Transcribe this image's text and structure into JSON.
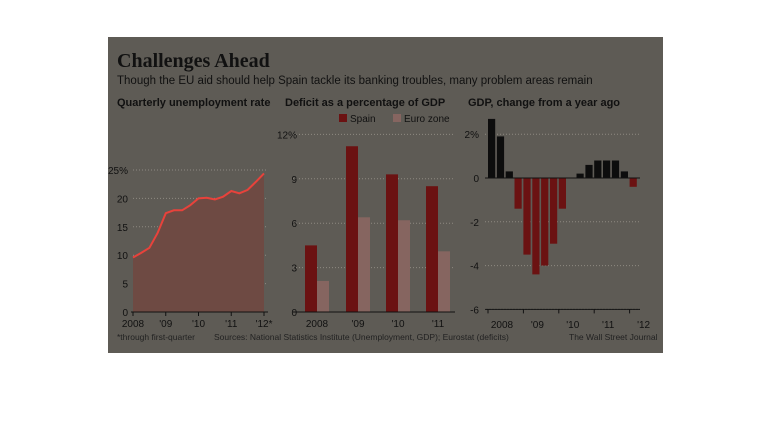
{
  "header": {
    "title": "Challenges Ahead",
    "subtitle": "Though the EU aid should help Spain tackle its banking troubles, many problem areas remain"
  },
  "footer": {
    "note": "*through first-quarter",
    "sources": "Sources: National Statistics Institute (Unemployment, GDP); Eurostat (deficits)",
    "credit": "The Wall Street Journal"
  },
  "colors": {
    "panel": "#5e5b55",
    "unemployment_line": "#e8423b",
    "unemployment_fill": "#6e4a43",
    "spain": "#6b1212",
    "euro_zone": "#866560",
    "gdp_positive": "#0d0d0d",
    "gdp_negative": "#6b1212",
    "gridline": "#8e8a82"
  },
  "chart_data": [
    {
      "type": "area",
      "title": "Quarterly unemployment rate",
      "x": [
        "2008 Q1",
        "2008 Q2",
        "2008 Q3",
        "2008 Q4",
        "2009 Q1",
        "2009 Q2",
        "2009 Q3",
        "2009 Q4",
        "2010 Q1",
        "2010 Q2",
        "2010 Q3",
        "2010 Q4",
        "2011 Q1",
        "2011 Q2",
        "2011 Q3",
        "2011 Q4",
        "2012 Q1"
      ],
      "values": [
        9.6,
        10.4,
        11.3,
        13.9,
        17.4,
        17.9,
        17.9,
        18.8,
        20.0,
        20.1,
        19.8,
        20.3,
        21.3,
        20.9,
        21.5,
        22.9,
        24.4
      ],
      "xtick_labels": [
        "2008",
        "'09",
        "'10",
        "'11",
        "'12*"
      ],
      "ytick_labels": [
        "0",
        "5",
        "10",
        "15",
        "20",
        "25%"
      ],
      "ylim": [
        0,
        25
      ]
    },
    {
      "type": "bar",
      "title": "Deficit as a percentage of GDP",
      "categories": [
        "2008",
        "'09",
        "'10",
        "'11"
      ],
      "series": [
        {
          "name": "Spain",
          "values": [
            4.5,
            11.2,
            9.3,
            8.5
          ]
        },
        {
          "name": "Euro zone",
          "values": [
            2.1,
            6.4,
            6.2,
            4.1
          ]
        }
      ],
      "ytick_labels": [
        "0",
        "3",
        "6",
        "9",
        "12%"
      ],
      "ylim": [
        0,
        12
      ]
    },
    {
      "type": "bar",
      "title": "GDP, change from a year ago",
      "x": [
        "2008 Q1",
        "2008 Q2",
        "2008 Q3",
        "2008 Q4",
        "2009 Q1",
        "2009 Q2",
        "2009 Q3",
        "2009 Q4",
        "2010 Q1",
        "2010 Q2",
        "2010 Q3",
        "2010 Q4",
        "2011 Q1",
        "2011 Q2",
        "2011 Q3",
        "2011 Q4",
        "2012 Q1"
      ],
      "values": [
        2.7,
        1.9,
        0.3,
        -1.4,
        -3.5,
        -4.4,
        -4.0,
        -3.0,
        -1.4,
        0.0,
        0.2,
        0.6,
        0.8,
        0.8,
        0.8,
        0.3,
        -0.4
      ],
      "xtick_labels": [
        "2008",
        "'09",
        "'10",
        "'11",
        "'12"
      ],
      "ytick_labels": [
        "-6",
        "-4",
        "-2",
        "0",
        "2%"
      ],
      "ylim": [
        -6,
        3
      ]
    }
  ]
}
